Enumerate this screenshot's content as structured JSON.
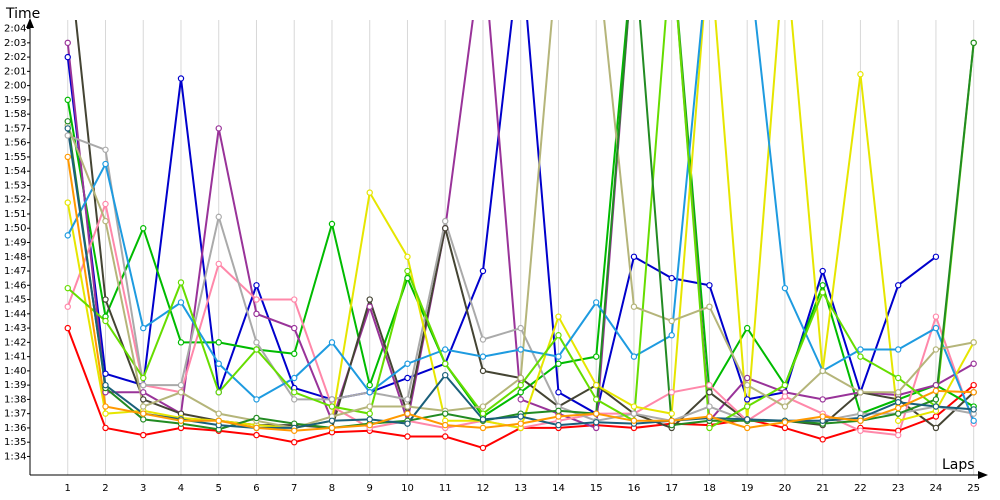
{
  "chart_data": {
    "type": "line",
    "y_label": "Time",
    "x_label": "Laps",
    "x": [
      1,
      2,
      3,
      4,
      5,
      6,
      7,
      8,
      9,
      10,
      11,
      12,
      13,
      14,
      15,
      16,
      17,
      18,
      19,
      20,
      21,
      22,
      23,
      24,
      25
    ],
    "xlim": [
      0,
      25.3
    ],
    "xticks": [
      1,
      2,
      3,
      4,
      5,
      6,
      7,
      8,
      9,
      10,
      11,
      12,
      13,
      14,
      15,
      16,
      17,
      18,
      19,
      20,
      21,
      22,
      23,
      24,
      25
    ],
    "ylim": [
      92.7,
      124.6
    ],
    "yticks": [
      {
        "value": 94,
        "label": "1:34"
      },
      {
        "value": 95,
        "label": "1:35"
      },
      {
        "value": 96,
        "label": "1:36"
      },
      {
        "value": 97,
        "label": "1:37"
      },
      {
        "value": 98,
        "label": "1:38"
      },
      {
        "value": 99,
        "label": "1:39"
      },
      {
        "value": 100,
        "label": "1:40"
      },
      {
        "value": 101,
        "label": "1:41"
      },
      {
        "value": 102,
        "label": "1:42"
      },
      {
        "value": 103,
        "label": "1:43"
      },
      {
        "value": 104,
        "label": "1:44"
      },
      {
        "value": 105,
        "label": "1:45"
      },
      {
        "value": 106,
        "label": "1:46"
      },
      {
        "value": 107,
        "label": "1:47"
      },
      {
        "value": 108,
        "label": "1:48"
      },
      {
        "value": 109,
        "label": "1:49"
      },
      {
        "value": 110,
        "label": "1:50"
      },
      {
        "value": 111,
        "label": "1:51"
      },
      {
        "value": 112,
        "label": "1:52"
      },
      {
        "value": 113,
        "label": "1:53"
      },
      {
        "value": 114,
        "label": "1:54"
      },
      {
        "value": 115,
        "label": "1:55"
      },
      {
        "value": 116,
        "label": "1:56"
      },
      {
        "value": 117,
        "label": "1:57"
      },
      {
        "value": 118,
        "label": "1:58"
      },
      {
        "value": 119,
        "label": "1:59"
      },
      {
        "value": 120,
        "label": "2:00"
      },
      {
        "value": 121,
        "label": "2:01"
      },
      {
        "value": 122,
        "label": "2:02"
      },
      {
        "value": 123,
        "label": "2:03"
      },
      {
        "value": 124,
        "label": "2:04"
      }
    ],
    "grid": true,
    "series": [
      {
        "color": "#ff0000",
        "values": [
          103,
          96,
          95.5,
          96,
          95.8,
          95.5,
          95,
          95.7,
          95.8,
          95.4,
          95.4,
          94.6,
          96,
          96,
          96.2,
          96,
          96.3,
          96.2,
          96.6,
          96,
          95.2,
          96,
          95.8,
          96.8,
          99
        ]
      },
      {
        "color": "#0000cc",
        "values": [
          122,
          99.8,
          99,
          120.5,
          98.5,
          106,
          98.8,
          98,
          98.5,
          99.5,
          100.5,
          107,
          130,
          98.5,
          97,
          108,
          106.5,
          106,
          98,
          98.5,
          107,
          98.5,
          106,
          108,
          null
        ]
      },
      {
        "color": "#00bb00",
        "values": [
          119,
          103.8,
          110,
          102,
          102,
          101.5,
          101.2,
          110.3,
          99,
          106.5,
          100.5,
          96.8,
          98.5,
          100.5,
          101,
          130,
          130,
          98.5,
          103,
          99,
          106,
          97,
          98,
          99,
          97.5
        ]
      },
      {
        "color": "#993399",
        "values": [
          123,
          98.5,
          98.5,
          97,
          117,
          104,
          103,
          96.5,
          104.5,
          96.5,
          110,
          130,
          98,
          97,
          96,
          130,
          130,
          96.5,
          99.5,
          98.5,
          98,
          98.5,
          98.3,
          99,
          100.5
        ]
      },
      {
        "color": "#444433",
        "values": [
          130,
          105,
          98,
          97,
          96.5,
          96.2,
          96.2,
          96,
          105,
          97,
          110,
          100,
          99.5,
          97.5,
          99,
          97,
          96,
          98.5,
          96.5,
          96.5,
          96.2,
          98.5,
          98,
          96,
          98.5
        ]
      },
      {
        "color": "#ff88aa",
        "values": [
          104.5,
          111.7,
          99,
          98.5,
          107.5,
          105,
          105,
          97.5,
          96,
          96.5,
          96,
          96.5,
          96,
          96.5,
          97,
          97,
          98.5,
          99,
          96.5,
          98.2,
          97,
          95.8,
          95.5,
          103.8,
          96.3
        ]
      },
      {
        "color": "#aaaaaa",
        "values": [
          116.5,
          115.5,
          99,
          99,
          110.8,
          102,
          98,
          98,
          98.5,
          98,
          110.5,
          102.2,
          103,
          97.5,
          96.5,
          97,
          96.5,
          97.5,
          96.5,
          96.5,
          96.5,
          97,
          97,
          97.5,
          97
        ]
      },
      {
        "color": "#e6e600",
        "values": [
          111.8,
          97,
          97.2,
          96.7,
          96.5,
          96.2,
          96,
          96.5,
          112.5,
          108,
          96.5,
          96.5,
          96,
          103.8,
          99,
          97.5,
          97,
          130,
          96.5,
          130,
          100,
          120.8,
          96.5,
          97.2,
          102
        ]
      },
      {
        "color": "#1e9be0",
        "values": [
          109.5,
          114.5,
          103,
          104.8,
          100.5,
          98,
          99.5,
          102,
          98.5,
          100.5,
          101.5,
          101,
          101.5,
          101,
          104.8,
          101,
          102.5,
          130,
          130,
          105.8,
          100,
          101.5,
          101.5,
          103,
          96.5
        ]
      },
      {
        "color": "#66dd00",
        "values": [
          105.8,
          103.5,
          99.5,
          106.2,
          98.5,
          101.5,
          98.5,
          97.5,
          97,
          107,
          100.5,
          97,
          99,
          102.5,
          98,
          96.5,
          130,
          96,
          97.5,
          99,
          105.5,
          101,
          99.5,
          97.5,
          123
        ]
      },
      {
        "color": "#b5b57a",
        "values": [
          117.2,
          110.5,
          97.5,
          98.5,
          97,
          96.5,
          96,
          96.8,
          97.5,
          97.5,
          97.2,
          97.5,
          99.5,
          130,
          130,
          104.5,
          103.5,
          104.5,
          99,
          97.5,
          100,
          98.5,
          98.5,
          101.5,
          102
        ]
      },
      {
        "color": "#228b22",
        "values": [
          117.5,
          98.8,
          96.6,
          96.3,
          95.9,
          96.7,
          96.3,
          96,
          96.3,
          96.5,
          97,
          96.5,
          97,
          97.2,
          97,
          130,
          96.2,
          96.5,
          96.5,
          96.5,
          96.3,
          96.5,
          97,
          98,
          123
        ]
      },
      {
        "color": "#1a5f7a",
        "values": [
          117,
          99,
          97,
          96.6,
          96.2,
          96,
          96,
          96.5,
          96.6,
          96.3,
          99.7,
          96.6,
          96.8,
          96.2,
          96.4,
          96.3,
          96.5,
          96.7,
          96.6,
          96.5,
          96.5,
          96.7,
          97.8,
          97.5,
          97.3
        ]
      },
      {
        "color": "#ff9900",
        "values": [
          115,
          97.5,
          97,
          96.5,
          96.5,
          96,
          95.8,
          96,
          96.2,
          97,
          96.2,
          96,
          96.3,
          96.8,
          97,
          96.5,
          96.5,
          96.8,
          96,
          96.4,
          96.8,
          96.5,
          97.4,
          98.6,
          98.5
        ]
      }
    ]
  }
}
